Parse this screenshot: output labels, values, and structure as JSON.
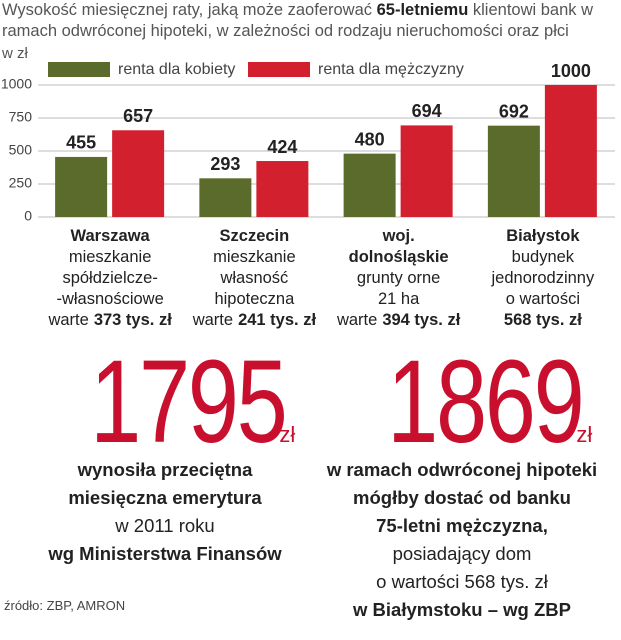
{
  "chart_data": {
    "type": "bar",
    "title": [
      {
        "text": "Wysokość miesięcznej raty, jaką może zaoferować "
      },
      {
        "text": "65-letniemu",
        "bold": true
      },
      {
        "text": " klientowi bank w ramach odwróconej hipoteki, w zależności od rodzaju nieruchomości oraz płci"
      }
    ],
    "y_label": "w zł",
    "categories": [
      "Warszawa",
      "Szczecin",
      "woj. dolnośląskie",
      "Białystok"
    ],
    "descriptions": [
      [
        "mieszkanie",
        "spółdzielcze-",
        "-własnościowe"
      ],
      [
        "mieszkanie",
        "własność",
        "hipoteczna"
      ],
      [
        "grunty orne",
        "21 ha"
      ],
      [
        "budynek",
        "jednorodzinny",
        "o wartości"
      ]
    ],
    "prices": [
      {
        "prefix": "warte",
        "amount": "373 tys. zł"
      },
      {
        "prefix": "warte",
        "amount": "241 tys. zł"
      },
      {
        "prefix": "warte",
        "amount": "394 tys. zł"
      },
      {
        "amount": "568 tys. zł"
      }
    ],
    "series": [
      {
        "name": "renta dla kobiety",
        "color": "#5b6b2b",
        "values": [
          455,
          293,
          480,
          692
        ]
      },
      {
        "name": "renta dla mężczyzny",
        "color": "#d3202e",
        "values": [
          657,
          424,
          694,
          1000
        ]
      }
    ],
    "ylim": [
      0,
      1000
    ],
    "yticks": [
      0,
      250,
      500,
      750,
      1000
    ],
    "grid": true,
    "stats": [
      {
        "value": "1795",
        "unit": "zł",
        "lines": [
          {
            "text": "wynosiła przeciętna",
            "bold": true
          },
          {
            "text": "miesięczna emerytura",
            "bold": true
          },
          {
            "text": "w 2011 roku"
          },
          {
            "text": "wg Ministerstwa Finansów",
            "bold": true
          }
        ]
      },
      {
        "value": "1869",
        "unit": "zł",
        "lines": [
          {
            "text": "w ramach odwróconej hipoteki",
            "bold": true
          },
          {
            "text": "mógłby dostać od banku",
            "bold": true
          },
          {
            "text": "75-letni mężczyzna,",
            "bold": true
          },
          {
            "text": "posiadający dom"
          },
          {
            "text": "o wartości 568 tys. zł"
          },
          {
            "text": "w Białymstoku – wg ZBP",
            "bold": true
          }
        ]
      }
    ],
    "source": "źródło: ZBP, AMRON"
  }
}
